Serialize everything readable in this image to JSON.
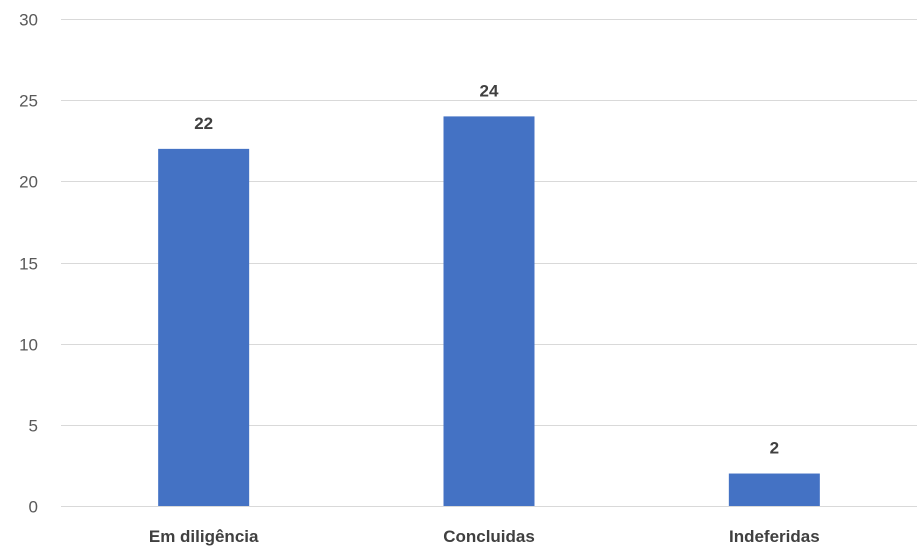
{
  "chart_data": {
    "type": "bar",
    "categories": [
      "Em diligência",
      "Concluidas",
      "Indeferidas"
    ],
    "values": [
      22,
      24,
      2
    ],
    "ylim": [
      0,
      30
    ],
    "yticks": [
      0,
      5,
      10,
      15,
      20,
      25,
      30
    ],
    "grid": true,
    "legend": "none",
    "data_labels": true,
    "title": "",
    "xlabel": "",
    "ylabel": ""
  },
  "colors": {
    "bar": "#4472c4",
    "grid": "#d9d9d9",
    "tick_text": "#595959",
    "label_text": "#404040"
  }
}
